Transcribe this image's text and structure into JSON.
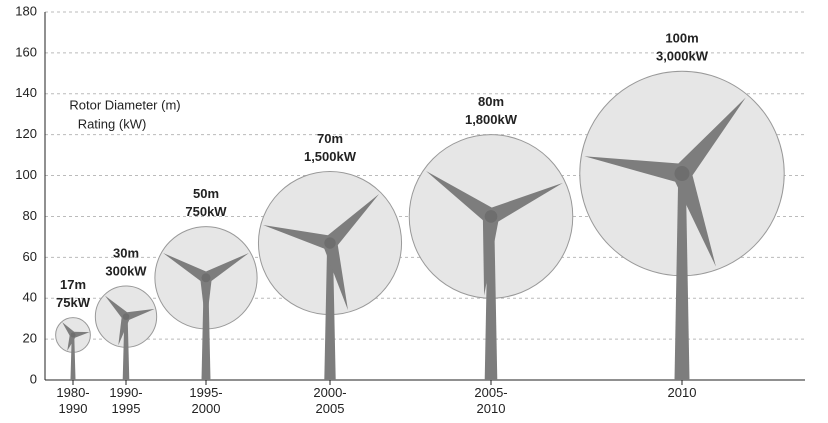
{
  "chart_data": {
    "type": "turbine",
    "categories": [
      "1980-\n1990",
      "1990-\n1995",
      "1995-\n2000",
      "2000-\n2005",
      "2005-\n2010",
      "2010"
    ],
    "values": [
      22,
      31,
      50,
      67,
      80,
      101
    ],
    "diameters": [
      17,
      30,
      50,
      70,
      80,
      100
    ],
    "diameter_labels": [
      "17m",
      "30m",
      "50m",
      "70m",
      "80m",
      "100m"
    ],
    "ratings": [
      75,
      300,
      750,
      1500,
      1800,
      3000
    ],
    "rating_labels": [
      "75kW",
      "300kW",
      "750kW",
      "1,500kW",
      "1,800kW",
      "3,000kW"
    ],
    "legend": [
      "Rotor Diameter (m)",
      "Rating (kW)"
    ],
    "ylim": [
      0,
      180
    ],
    "yticks": [
      0,
      20,
      40,
      60,
      80,
      100,
      120,
      140,
      160,
      180
    ],
    "grid": true
  }
}
